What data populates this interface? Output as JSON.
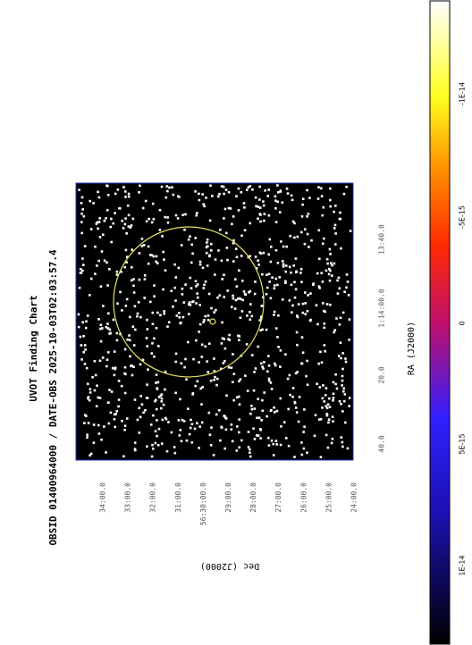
{
  "title": "UVOT Finding Chart",
  "subtitle": "OBSID 01400964000 / DATE-OBS 2025-10-03T02:03:57.4",
  "x_axis": {
    "label": "RA (J2000)",
    "ticks": [
      "40.0",
      "20.0",
      "1:14:00.0",
      "13:40.0"
    ]
  },
  "y_axis": {
    "label": "Dec (J2000)",
    "ticks": [
      "34:00.0",
      "33:00.0",
      "32:00.0",
      "31:00.0",
      "56:30:00.0",
      "29:00.0",
      "28:00.0",
      "27:00.0",
      "26:00.0",
      "25:00.0",
      "24:00.0"
    ]
  },
  "colorbar": {
    "ticks": [
      "1E-14",
      "5E-15",
      "0",
      "-5E-15",
      "-1E-14"
    ]
  }
}
